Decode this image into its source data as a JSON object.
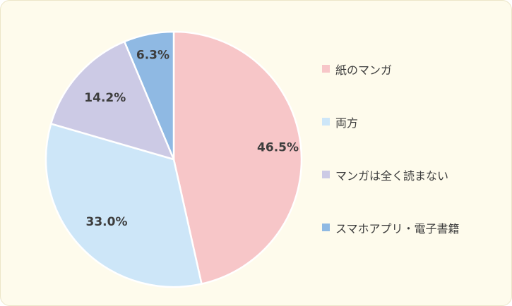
{
  "chart_data": {
    "type": "pie",
    "categories": [
      "紙のマンガ",
      "両方",
      "マンガは全く読まない",
      "スマホアプリ・電子書籍"
    ],
    "values": [
      46.5,
      33.0,
      14.2,
      6.3
    ],
    "labels": [
      "46.5%",
      "33.0%",
      "14.2%",
      "6.3%"
    ],
    "colors": [
      "#f7c6c8",
      "#cde6f8",
      "#cccae5",
      "#8fb9e3"
    ],
    "legend": "right",
    "start": "12 o'clock",
    "direction": "clockwise"
  }
}
